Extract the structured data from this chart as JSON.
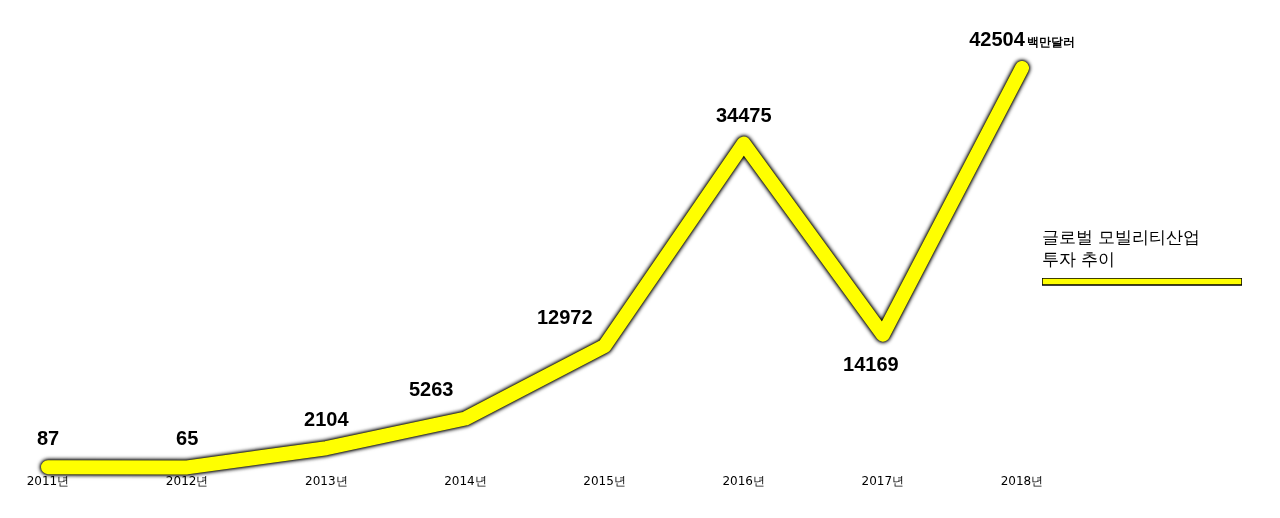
{
  "chart_data": {
    "type": "line",
    "categories": [
      "2011년",
      "2012년",
      "2013년",
      "2014년",
      "2015년",
      "2016년",
      "2017년",
      "2018년"
    ],
    "series": [
      {
        "name": "글로벌 모빌리티산업\n투자 추이",
        "color": "#ffff00",
        "values": [
          87,
          65,
          2104,
          5263,
          12972,
          34475,
          14169,
          42504
        ]
      }
    ],
    "data_labels": true,
    "annotations": [
      {
        "text": "백만달러",
        "x": "2018년",
        "y": 42504
      }
    ],
    "legend": "right",
    "grid": false,
    "tick_labels": "x",
    "marker": "none",
    "line_style": "solid"
  }
}
